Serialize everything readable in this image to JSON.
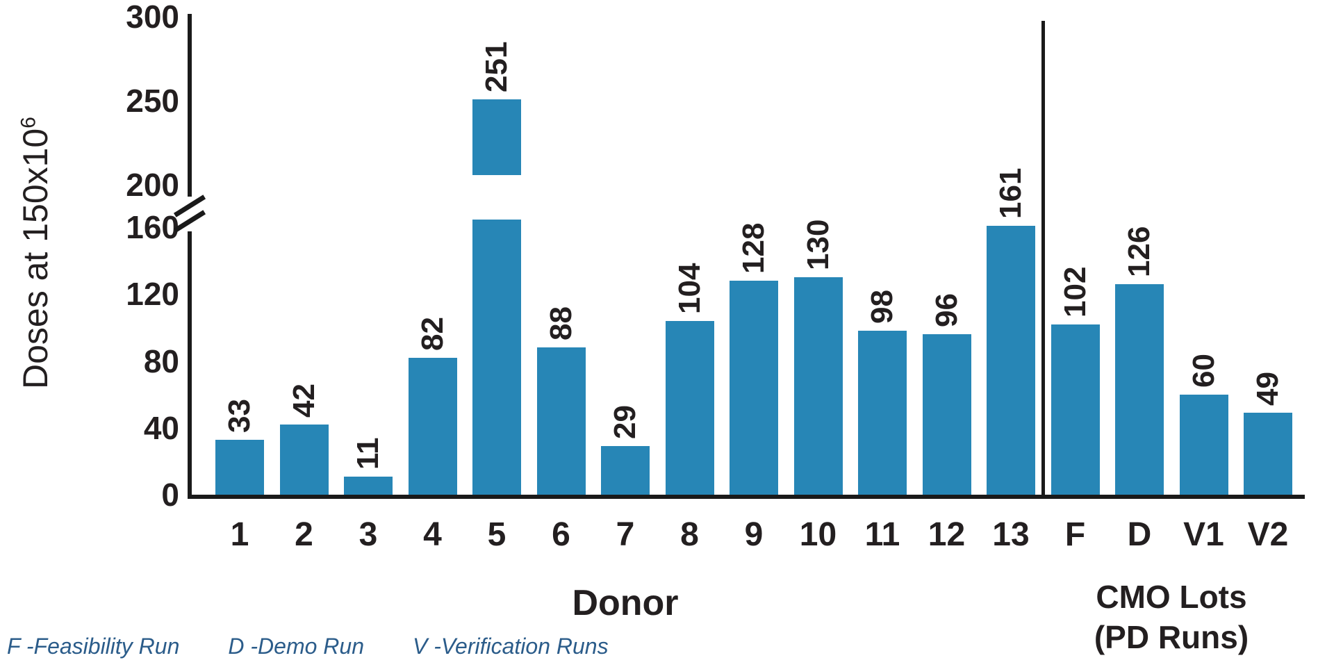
{
  "chart_data": {
    "type": "bar",
    "title": "",
    "ylabel": "Doses at 150x10^6",
    "ylabel_base": "Doses at 150x10",
    "ylabel_exponent": "6",
    "xlabel_donor": "Donor",
    "xlabel_cmo_line1": "CMO Lots",
    "xlabel_cmo_line2": "(PD Runs)",
    "categories": [
      "1",
      "2",
      "3",
      "4",
      "5",
      "6",
      "7",
      "8",
      "9",
      "10",
      "11",
      "12",
      "13",
      "F",
      "D",
      "V1",
      "V2"
    ],
    "values": [
      33,
      42,
      11,
      82,
      251,
      88,
      29,
      104,
      128,
      130,
      98,
      96,
      161,
      102,
      126,
      60,
      49
    ],
    "groups": [
      {
        "name": "Donor",
        "categories": [
          "1",
          "2",
          "3",
          "4",
          "5",
          "6",
          "7",
          "8",
          "9",
          "10",
          "11",
          "12",
          "13"
        ]
      },
      {
        "name": "CMO Lots (PD Runs)",
        "categories": [
          "F",
          "D",
          "V1",
          "V2"
        ]
      }
    ],
    "group_divider_after": "13",
    "y_ticks_lower": [
      0,
      40,
      80,
      120,
      160
    ],
    "y_ticks_upper": [
      200,
      250,
      300
    ],
    "y_axis_break": {
      "between": [
        160,
        200
      ]
    },
    "ylim": [
      0,
      300
    ],
    "grid": false,
    "bar_color": "#2786b6",
    "axis_color": "#1a1a1a",
    "legend_color": "#2b5c8a",
    "legend": [
      "F -Feasibility Run",
      "D -Demo Run",
      "V -Verification Runs"
    ]
  }
}
